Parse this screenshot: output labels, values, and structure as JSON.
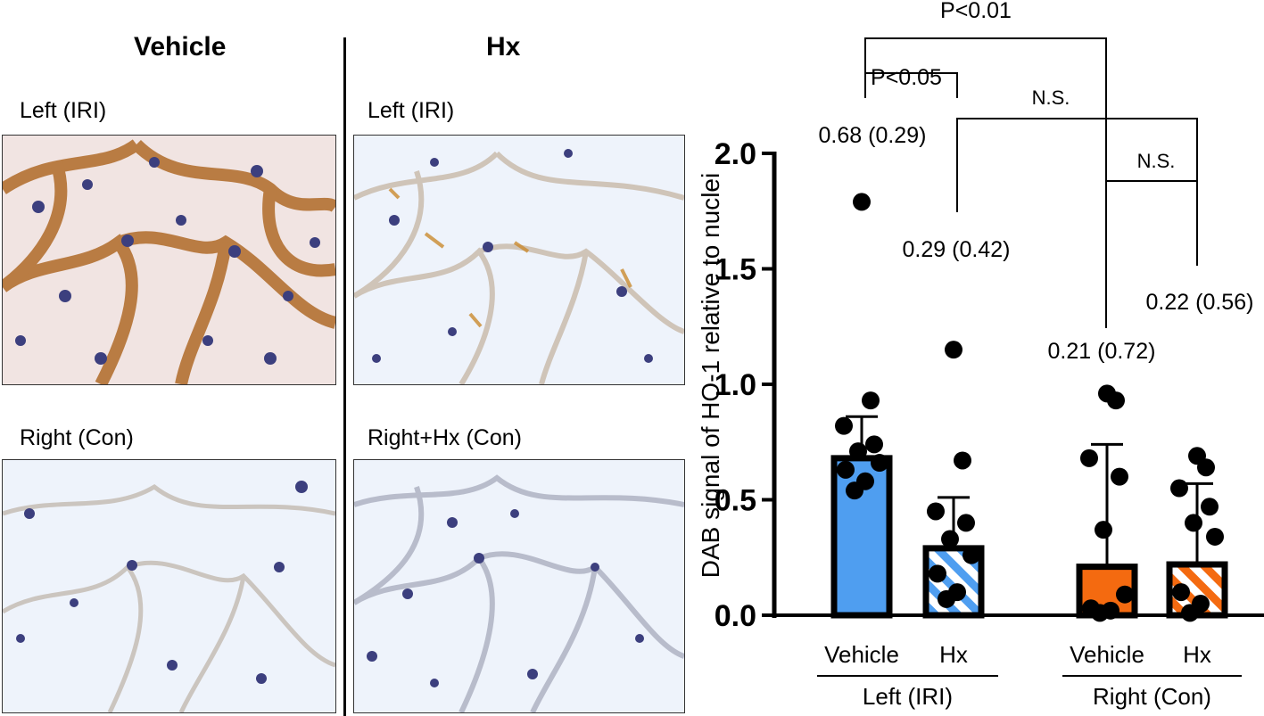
{
  "figure": {
    "columns": {
      "left": "Vehicle",
      "right": "Hx"
    },
    "panels": [
      {
        "id": "vehicle_left",
        "label": "Left (IRI)"
      },
      {
        "id": "hx_left",
        "label": "Left (IRI)"
      },
      {
        "id": "vehicle_right",
        "label": "Right (Con)"
      },
      {
        "id": "hx_right",
        "label": "Right+Hx (Con)"
      }
    ]
  },
  "chart_data": {
    "type": "bar",
    "ylabel": "DAB signal of HO-1 relative to nuclei",
    "ylim": [
      0,
      2.0
    ],
    "yticks": [
      "0.0",
      "0.5",
      "1.0",
      "1.5",
      "2.0"
    ],
    "categories": [
      "Vehicle",
      "Hx",
      "Vehicle",
      "Hx"
    ],
    "groups": [
      {
        "label": "Left (IRI)",
        "categories": [
          0,
          1
        ]
      },
      {
        "label": "Right (Con)",
        "categories": [
          2,
          3
        ]
      }
    ],
    "series": [
      {
        "values": [
          0.68,
          0.29,
          0.21,
          0.22
        ],
        "error_upper": [
          0.86,
          0.51,
          0.74,
          0.57
        ],
        "colors": [
          "#4f9ef0",
          "#4f9ef0",
          "#f46a10",
          "#f46a10"
        ],
        "patterns": [
          "solid",
          "striped",
          "solid",
          "striped"
        ],
        "value_labels": [
          "0.68 (0.29)",
          "0.29 (0.42)",
          "0.21 (0.72)",
          "0.22 (0.56)"
        ],
        "points": [
          [
            1.79,
            0.93,
            0.82,
            0.74,
            0.71,
            0.66,
            0.63,
            0.58,
            0.54
          ],
          [
            1.15,
            0.67,
            0.45,
            0.4,
            0.33,
            0.26,
            0.18,
            0.1,
            0.07
          ],
          [
            0.96,
            0.93,
            0.68,
            0.6,
            0.37,
            0.09,
            0.03,
            0.02,
            0.01
          ],
          [
            0.69,
            0.64,
            0.55,
            0.47,
            0.4,
            0.34,
            0.1,
            0.05,
            0.01
          ]
        ]
      }
    ],
    "comparisons": [
      {
        "between": [
          0,
          1
        ],
        "label": "P<0.05"
      },
      {
        "between": [
          1,
          3
        ],
        "label": "N.S."
      },
      {
        "between": [
          2,
          3
        ],
        "label": "N.S."
      },
      {
        "between": [
          0,
          2
        ],
        "label": "P<0.01"
      }
    ]
  }
}
